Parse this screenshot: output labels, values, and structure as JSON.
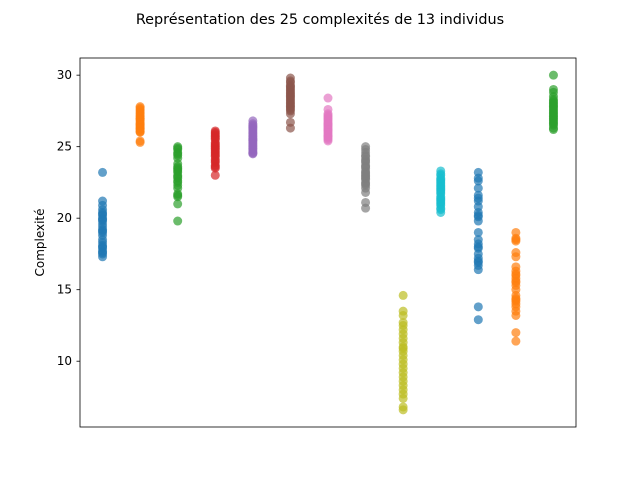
{
  "chart_data": {
    "type": "scatter",
    "title": "Représentation des 25 complexités de 13 individus",
    "xlabel": "",
    "ylabel": "Complexité",
    "ylim": [
      5.4,
      31.2
    ],
    "yticks": [
      10,
      15,
      20,
      25,
      30
    ],
    "x_ticks_visible": false,
    "grid": false,
    "legend": "none",
    "marker_alpha": 0.7,
    "series": [
      {
        "x": 1,
        "color": "#1f77b4",
        "values": [
          23.2,
          21.2,
          20.9,
          20.6,
          20.4,
          20.2,
          20.0,
          19.8,
          19.6,
          19.4,
          19.2,
          19.0,
          18.8,
          18.5,
          18.3,
          18.0,
          17.9,
          17.7,
          17.5,
          17.3,
          20.3,
          19.9,
          19.1,
          18.1,
          17.6
        ]
      },
      {
        "x": 2,
        "color": "#ff7f0e",
        "values": [
          27.8,
          27.6,
          27.4,
          27.2,
          27.0,
          26.8,
          26.6,
          26.4,
          26.2,
          26.0,
          25.4,
          25.3,
          27.5,
          27.1,
          26.9,
          26.7,
          26.5,
          26.3,
          26.1,
          27.3,
          26.95,
          26.55,
          26.25,
          27.7,
          26.05
        ]
      },
      {
        "x": 3,
        "color": "#2ca02c",
        "values": [
          25.0,
          24.8,
          24.6,
          24.4,
          24.2,
          23.8,
          23.6,
          23.4,
          23.2,
          23.0,
          22.8,
          22.6,
          22.3,
          22.1,
          21.7,
          21.5,
          21.0,
          19.8,
          24.5,
          23.3,
          22.9,
          21.6,
          24.9,
          23.5,
          22.5
        ]
      },
      {
        "x": 4,
        "color": "#d62728",
        "values": [
          26.1,
          25.9,
          25.7,
          25.5,
          25.3,
          25.1,
          24.9,
          24.7,
          24.5,
          24.3,
          24.1,
          23.9,
          23.6,
          23.5,
          23.0,
          25.8,
          25.2,
          24.6,
          24.0,
          25.6,
          25.0,
          24.4,
          26.0,
          24.8,
          23.7
        ]
      },
      {
        "x": 5,
        "color": "#9467bd",
        "values": [
          26.8,
          26.5,
          26.3,
          26.1,
          25.9,
          25.7,
          25.5,
          25.3,
          25.1,
          24.9,
          24.7,
          24.5,
          26.4,
          25.8,
          25.2,
          24.6,
          26.0,
          25.4,
          24.8,
          26.2,
          25.6,
          25.0,
          26.6,
          25.45,
          24.55
        ]
      },
      {
        "x": 6,
        "color": "#8c564b",
        "values": [
          29.8,
          29.5,
          29.3,
          29.1,
          28.9,
          28.7,
          28.5,
          28.3,
          28.1,
          27.9,
          27.7,
          27.5,
          27.3,
          26.7,
          26.3,
          29.6,
          29.0,
          28.4,
          27.8,
          28.8,
          28.2,
          27.6,
          29.2,
          28.6,
          28.0
        ]
      },
      {
        "x": 7,
        "color": "#e377c2",
        "values": [
          28.4,
          27.6,
          27.3,
          27.1,
          26.9,
          26.7,
          26.5,
          26.3,
          26.1,
          25.9,
          25.7,
          25.5,
          25.4,
          27.0,
          26.6,
          26.2,
          25.8,
          26.8,
          26.4,
          26.0,
          25.6,
          27.2,
          26.55,
          26.15,
          25.75
        ]
      },
      {
        "x": 8,
        "color": "#7f7f7f",
        "values": [
          25.0,
          24.6,
          24.3,
          24.1,
          23.9,
          23.7,
          23.5,
          23.3,
          23.1,
          22.9,
          22.7,
          22.5,
          22.3,
          21.8,
          21.1,
          20.7,
          24.4,
          23.6,
          22.8,
          22.1,
          24.0,
          23.2,
          22.4,
          24.8,
          23.0
        ]
      },
      {
        "x": 9,
        "color": "#bcbd22",
        "values": [
          14.6,
          13.5,
          13.2,
          12.7,
          12.5,
          11.9,
          11.6,
          11.3,
          11.0,
          10.7,
          10.4,
          10.1,
          9.8,
          9.5,
          9.2,
          8.9,
          8.6,
          8.3,
          8.0,
          7.7,
          7.4,
          6.8,
          6.6,
          12.2,
          10.9
        ]
      },
      {
        "x": 10,
        "color": "#17becf",
        "values": [
          23.3,
          23.0,
          22.7,
          22.5,
          22.3,
          22.1,
          21.9,
          21.7,
          21.5,
          21.3,
          21.1,
          20.9,
          20.7,
          20.4,
          23.1,
          22.6,
          22.2,
          21.8,
          21.4,
          21.0,
          22.8,
          22.0,
          21.2,
          20.6,
          22.4
        ]
      },
      {
        "x": 11,
        "color": "#1f77b4",
        "values": [
          23.2,
          22.8,
          22.1,
          21.6,
          21.2,
          20.8,
          20.4,
          20.1,
          19.0,
          18.5,
          18.2,
          17.9,
          17.5,
          17.0,
          16.7,
          16.4,
          13.8,
          12.9,
          22.6,
          21.4,
          20.2,
          18.0,
          17.2,
          19.8,
          16.9
        ]
      },
      {
        "x": 12,
        "color": "#ff7f0e",
        "values": [
          19.0,
          18.6,
          18.4,
          17.6,
          17.3,
          16.6,
          16.3,
          16.0,
          15.8,
          15.6,
          15.3,
          15.0,
          14.6,
          14.4,
          14.2,
          14.0,
          13.8,
          13.5,
          13.2,
          12.0,
          11.4,
          18.5,
          16.1,
          14.3,
          15.5
        ]
      },
      {
        "x": 13,
        "color": "#2ca02c",
        "values": [
          30.0,
          29.0,
          28.8,
          28.5,
          28.3,
          28.1,
          27.9,
          27.7,
          27.5,
          27.3,
          27.1,
          26.9,
          26.7,
          26.5,
          26.3,
          26.2,
          28.2,
          27.8,
          27.4,
          27.0,
          26.6,
          28.0,
          27.6,
          27.2,
          26.8
        ]
      }
    ]
  }
}
